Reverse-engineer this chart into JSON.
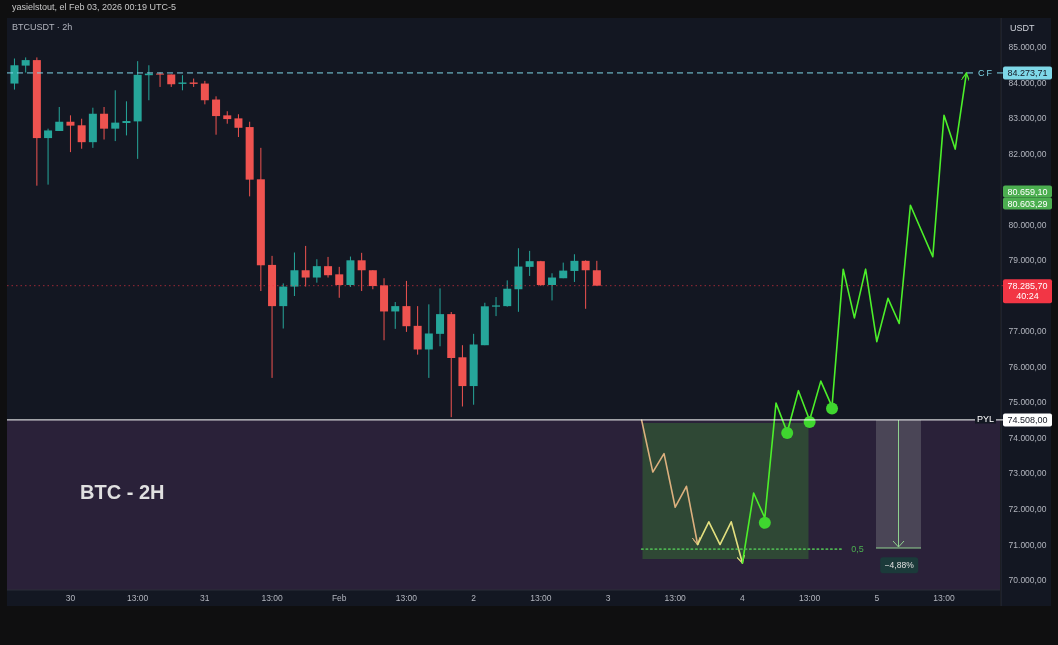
{
  "chart_data": {
    "type": "candlestick",
    "title": "BTCUSDT · 2h",
    "ylabel": "USDT",
    "x": [
      "2026-01-29T15:00",
      "2026-01-29T17:00",
      "2026-01-29T19:00",
      "2026-01-29T21:00",
      "2026-01-29T23:00",
      "2026-01-30T01:00",
      "2026-01-30T03:00",
      "2026-01-30T05:00",
      "2026-01-30T07:00",
      "2026-01-30T09:00",
      "2026-01-30T11:00",
      "2026-01-30T13:00",
      "2026-01-30T15:00",
      "2026-01-30T17:00",
      "2026-01-30T19:00",
      "2026-01-30T21:00",
      "2026-01-30T23:00",
      "2026-01-31T01:00",
      "2026-01-31T03:00",
      "2026-01-31T05:00",
      "2026-01-31T07:00",
      "2026-01-31T09:00",
      "2026-01-31T11:00",
      "2026-01-31T13:00",
      "2026-01-31T15:00",
      "2026-01-31T17:00",
      "2026-01-31T19:00",
      "2026-01-31T21:00",
      "2026-01-31T23:00",
      "2026-02-01T01:00",
      "2026-02-01T03:00",
      "2026-02-01T05:00",
      "2026-02-01T07:00",
      "2026-02-01T09:00",
      "2026-02-01T11:00",
      "2026-02-01T13:00",
      "2026-02-01T15:00",
      "2026-02-01T17:00",
      "2026-02-01T19:00",
      "2026-02-01T21:00",
      "2026-02-01T23:00",
      "2026-02-02T01:00",
      "2026-02-02T03:00",
      "2026-02-02T05:00",
      "2026-02-02T07:00",
      "2026-02-02T09:00",
      "2026-02-02T11:00",
      "2026-02-02T13:00",
      "2026-02-02T15:00",
      "2026-02-02T17:00",
      "2026-02-02T19:00",
      "2026-02-02T21:00",
      "2026-02-02T23:00"
    ],
    "ohlc": [
      [
        83975,
        84680,
        83805,
        84490
      ],
      [
        84480,
        84710,
        84285,
        84635
      ],
      [
        84635,
        84710,
        81100,
        82440
      ],
      [
        82440,
        82705,
        81130,
        82655
      ],
      [
        82640,
        83315,
        82640,
        82900
      ],
      [
        82900,
        83080,
        82045,
        82790
      ],
      [
        82800,
        82985,
        82140,
        82325
      ],
      [
        82325,
        83295,
        82165,
        83125
      ],
      [
        83125,
        83315,
        82400,
        82705
      ],
      [
        82705,
        83785,
        82355,
        82875
      ],
      [
        82865,
        83475,
        82515,
        82920
      ],
      [
        82910,
        84605,
        81855,
        84220
      ],
      [
        84210,
        84490,
        83505,
        84255
      ],
      [
        84255,
        84285,
        83880,
        84240
      ],
      [
        84230,
        84230,
        83880,
        83955
      ],
      [
        83965,
        84210,
        83785,
        84005
      ],
      [
        84005,
        84115,
        83880,
        83965
      ],
      [
        83975,
        84050,
        83390,
        83505
      ],
      [
        83525,
        83615,
        82535,
        83060
      ],
      [
        83080,
        83195,
        82845,
        82975
      ],
      [
        82995,
        83110,
        82470,
        82730
      ],
      [
        82750,
        82900,
        80800,
        81270
      ],
      [
        81280,
        82165,
        78135,
        78860
      ],
      [
        78870,
        79125,
        75690,
        77710
      ],
      [
        77710,
        78350,
        77080,
        78260
      ],
      [
        78260,
        79220,
        77995,
        78720
      ],
      [
        78720,
        79405,
        78260,
        78515
      ],
      [
        78515,
        79030,
        78370,
        78835
      ],
      [
        78835,
        79095,
        78515,
        78580
      ],
      [
        78605,
        78815,
        77945,
        78305
      ],
      [
        78305,
        79105,
        78250,
        79000
      ],
      [
        79000,
        79210,
        78135,
        78720
      ],
      [
        78720,
        78720,
        78185,
        78275
      ],
      [
        78295,
        78495,
        76750,
        77560
      ],
      [
        77560,
        77825,
        77070,
        77710
      ],
      [
        77710,
        78420,
        76985,
        77145
      ],
      [
        77155,
        77710,
        76345,
        76490
      ],
      [
        76490,
        77760,
        75690,
        76940
      ],
      [
        76930,
        78210,
        76580,
        77485
      ],
      [
        77485,
        77545,
        74585,
        76250
      ],
      [
        76270,
        76610,
        74885,
        75460
      ],
      [
        75460,
        76930,
        74935,
        76630
      ],
      [
        76610,
        77805,
        76610,
        77705
      ],
      [
        77695,
        77965,
        77430,
        77730
      ],
      [
        77710,
        78435,
        77695,
        78200
      ],
      [
        78185,
        79340,
        77550,
        78825
      ],
      [
        78815,
        79265,
        78560,
        78975
      ],
      [
        78975,
        78985,
        78275,
        78305
      ],
      [
        78305,
        78635,
        77870,
        78515
      ],
      [
        78495,
        78935,
        78495,
        78710
      ],
      [
        78700,
        79170,
        78390,
        78985
      ],
      [
        78985,
        79000,
        77635,
        78720
      ],
      [
        78720,
        78985,
        78285.7,
        78285.7
      ]
    ],
    "colors": [
      "#26a69a",
      "#26a69a",
      "#ef5350",
      "#26a69a",
      "#26a69a",
      "#ef5350",
      "#ef5350",
      "#26a69a",
      "#ef5350",
      "#26a69a",
      "#26a69a",
      "#26a69a",
      "#26a69a",
      "#ef5350",
      "#ef5350",
      "#26a69a",
      "#ef5350",
      "#ef5350",
      "#ef5350",
      "#ef5350",
      "#ef5350",
      "#ef5350",
      "#ef5350",
      "#ef5350",
      "#26a69a",
      "#26a69a",
      "#ef5350",
      "#26a69a",
      "#ef5350",
      "#ef5350",
      "#26a69a",
      "#ef5350",
      "#ef5350",
      "#ef5350",
      "#26a69a",
      "#ef5350",
      "#ef5350",
      "#26a69a",
      "#26a69a",
      "#ef5350",
      "#ef5350",
      "#26a69a",
      "#26a69a",
      "#26a69a",
      "#26a69a",
      "#26a69a",
      "#26a69a",
      "#ef5350",
      "#26a69a",
      "#26a69a",
      "#26a69a",
      "#ef5350",
      "#ef5350"
    ],
    "series": [
      {
        "type": "line",
        "color": "#dcb07e",
        "x": [
          "2026-02-03T07:00",
          "2026-02-03T09:00",
          "2026-02-03T11:00",
          "2026-02-03T13:00",
          "2026-02-03T15:00",
          "2026-02-03T17:00"
        ],
        "values": [
          74500,
          73040,
          73560,
          72050,
          72640,
          71000
        ]
      },
      {
        "type": "line",
        "color": "#e3e07f",
        "x": [
          "2026-02-03T17:00",
          "2026-02-03T19:00",
          "2026-02-03T21:00",
          "2026-02-03T23:00",
          "2026-02-04T01:00"
        ],
        "values": [
          71000,
          71640,
          71000,
          71640,
          70480
        ]
      },
      {
        "type": "line",
        "color": "#4cef2a",
        "x": [
          "2026-02-04T01:00",
          "2026-02-04T03:00",
          "2026-02-04T05:00",
          "2026-02-04T07:00",
          "2026-02-04T09:00",
          "2026-02-04T11:00",
          "2026-02-04T13:00",
          "2026-02-04T15:00",
          "2026-02-04T17:00",
          "2026-02-04T19:00",
          "2026-02-04T21:00",
          "2026-02-04T23:00",
          "2026-02-05T01:00",
          "2026-02-05T03:00",
          "2026-02-05T05:00",
          "2026-02-05T07:00",
          "2026-02-05T11:00",
          "2026-02-05T13:00",
          "2026-02-05T15:00",
          "2026-02-05T17:00"
        ],
        "values": [
          70480,
          72450,
          71750,
          74980,
          74160,
          75330,
          74500,
          75600,
          74880,
          78750,
          77380,
          78750,
          76710,
          77930,
          77220,
          80550,
          79100,
          83080,
          82130,
          84270
        ]
      },
      {
        "type": "scatter",
        "color": "#3fd62f",
        "marker": "circle",
        "x": [
          "2026-02-04T05:00",
          "2026-02-04T09:00",
          "2026-02-04T13:00",
          "2026-02-04T17:00"
        ],
        "values": [
          71610,
          74140,
          74450,
          74830
        ]
      },
      {
        "type": "line",
        "name": "0,5",
        "color": "#4caf50",
        "line_style": "dotted",
        "x": [
          "2026-02-03T07:00",
          "2026-02-04T19:00"
        ],
        "values": [
          70870,
          70870
        ]
      }
    ],
    "xlim": [
      "2026-01-29T13:40",
      "2026-02-05T23:00"
    ],
    "xticks": [
      {
        "value": "2026-01-30T01:00",
        "label": "30"
      },
      {
        "value": "2026-01-30T13:00",
        "label": "13:00"
      },
      {
        "value": "2026-01-31T01:00",
        "label": "31"
      },
      {
        "value": "2026-01-31T13:00",
        "label": "13:00"
      },
      {
        "value": "2026-02-01T01:00",
        "label": "Feb"
      },
      {
        "value": "2026-02-01T13:00",
        "label": "13:00"
      },
      {
        "value": "2026-02-02T01:00",
        "label": "2"
      },
      {
        "value": "2026-02-02T13:00",
        "label": "13:00"
      },
      {
        "value": "2026-02-03T01:00",
        "label": "3"
      },
      {
        "value": "2026-02-03T13:00",
        "label": "13:00"
      },
      {
        "value": "2026-02-04T01:00",
        "label": "4"
      },
      {
        "value": "2026-02-04T13:00",
        "label": "13:00"
      },
      {
        "value": "2026-02-05T01:00",
        "label": "5"
      },
      {
        "value": "2026-02-05T13:00",
        "label": "13:00"
      }
    ],
    "ylim": [
      69720,
      85820
    ],
    "yticks": [
      {
        "value": 70000,
        "label": "70.000,00"
      },
      {
        "value": 71000,
        "label": "71.000,00"
      },
      {
        "value": 72000,
        "label": "72.000,00"
      },
      {
        "value": 73000,
        "label": "73.000,00"
      },
      {
        "value": 74000,
        "label": "74.000,00"
      },
      {
        "value": 75000,
        "label": "75.000,00"
      },
      {
        "value": 76000,
        "label": "76.000,00"
      },
      {
        "value": 77000,
        "label": "77.000,00"
      },
      {
        "value": 79000,
        "label": "79.000,00"
      },
      {
        "value": 80000,
        "label": "80.000,00"
      },
      {
        "value": 82000,
        "label": "82.000,00"
      },
      {
        "value": 83000,
        "label": "83.000,00"
      },
      {
        "value": 84000,
        "label": "84.000,00"
      },
      {
        "value": 85000,
        "label": "85.000,00"
      }
    ],
    "ref_lines": [
      {
        "axis": "y",
        "value": 84273.71,
        "label": "84.273,71",
        "color": "#7fd8e8",
        "line_style": "dashed"
      },
      {
        "axis": "y",
        "value": 74508,
        "label": "74.508,00",
        "color": "#ffffff",
        "line_style": "solid"
      },
      {
        "axis": "y",
        "value": 78285.7,
        "label": "78.285,70",
        "color": "#f23645",
        "line_style": "dotted"
      }
    ],
    "bands": [
      {
        "axis": "y",
        "from": 69720,
        "to": 74508,
        "color": "#2a2139"
      }
    ],
    "annotations": [
      "yasielstout, el Feb 03, 2026 00:19 UTC-5",
      "BTC - 2H",
      "CF",
      "PYL",
      "40:24",
      "80.659,10",
      "80.603,29",
      {
        "text": "−4,88%",
        "x": "2026-02-05T05:00",
        "y": 70420
      }
    ]
  }
}
